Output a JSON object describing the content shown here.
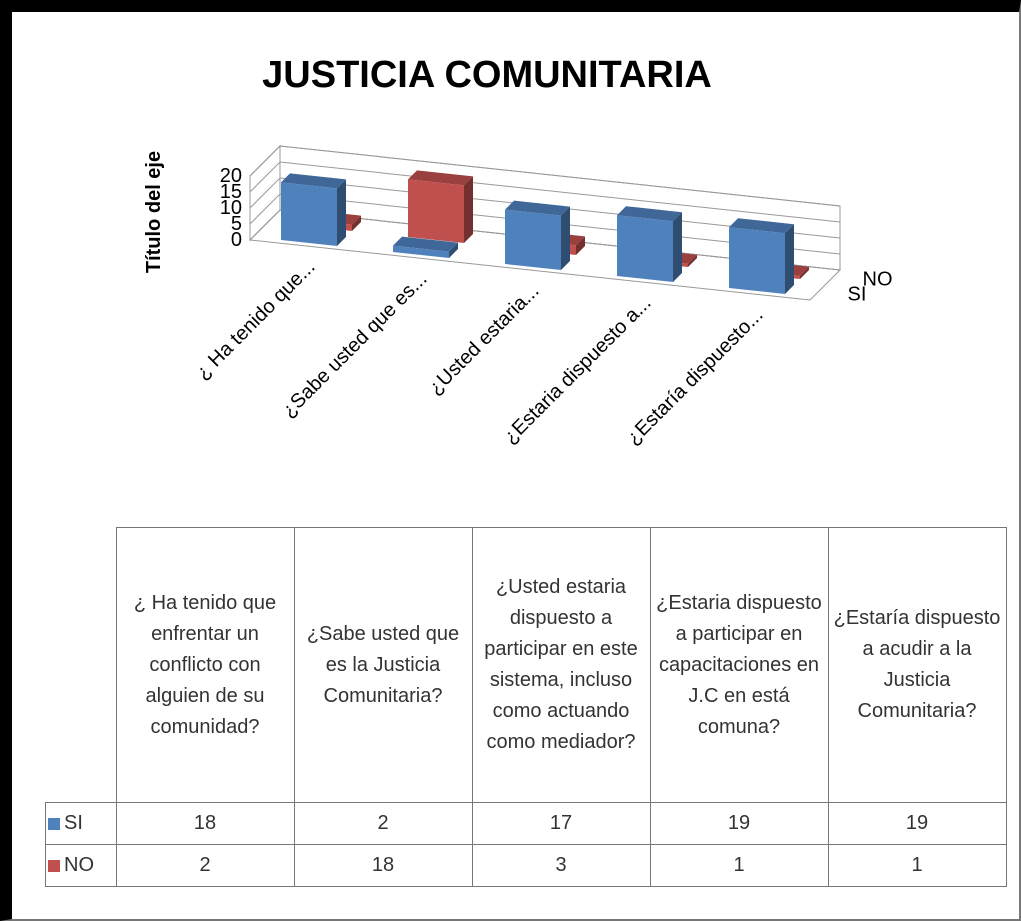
{
  "chart_data": {
    "type": "bar3d",
    "title": "JUSTICIA COMUNITARIA",
    "y_label": "Título del eje",
    "categories": [
      "¿ Ha tenido que...",
      "¿Sabe usted que es...",
      "¿Usted estaria...",
      "¿Estaria dispuesto a...",
      "¿Estaría dispuesto..."
    ],
    "series": [
      {
        "name": "SI",
        "color": "#4f81bd",
        "values": [
          18,
          2,
          17,
          19,
          19
        ]
      },
      {
        "name": "NO",
        "color": "#c0504d",
        "values": [
          2,
          18,
          3,
          1,
          1
        ]
      }
    ],
    "ylim": [
      0,
      20
    ],
    "yticks": [
      0,
      5,
      10,
      15,
      20
    ],
    "grid": true,
    "data_table": {
      "headers": [
        "¿ Ha tenido que enfrentar un conflicto con alguien de su comunidad?",
        "¿Sabe usted que es la Justicia Comunitaria?",
        "¿Usted estaria dispuesto a participar en este sistema, incluso como actuando como mediador?",
        "¿Estaria dispuesto a participar en capacitaciones en J.C en está comuna?",
        "¿Estaría dispuesto  a acudir a la Justicia Comunitaria?"
      ]
    }
  }
}
